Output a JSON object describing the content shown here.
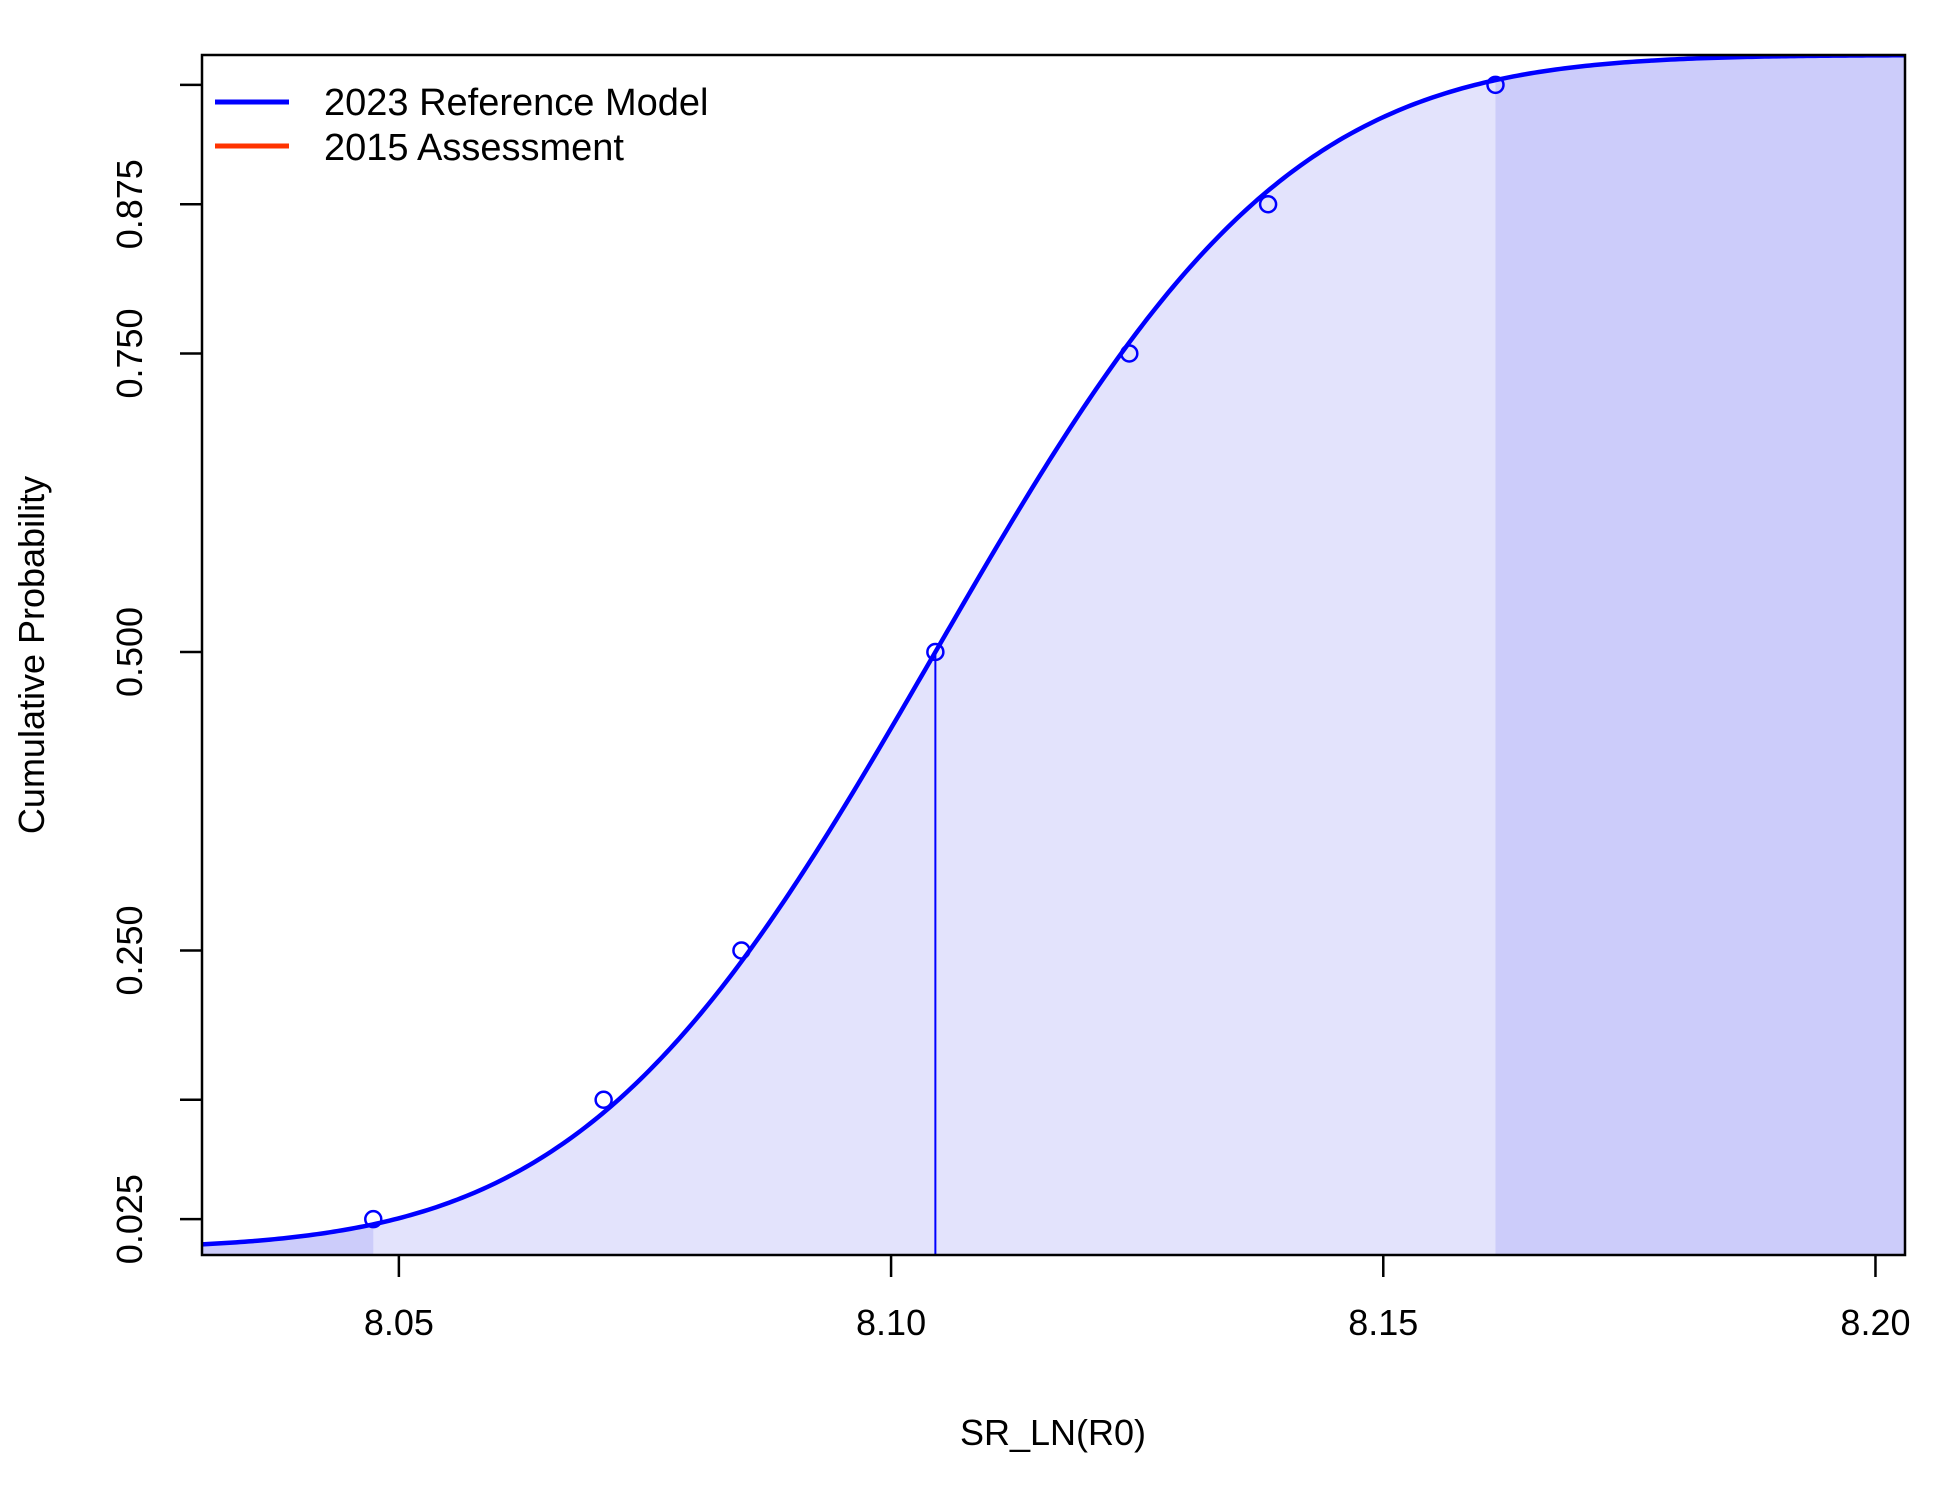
{
  "chart_data": {
    "type": "line",
    "xlabel": "SR_LN(R0)",
    "ylabel": "Cumulative Probability",
    "xlim": [
      8.03,
      8.203
    ],
    "ylim": [
      0.0,
      1.0
    ],
    "x_ticks": [
      "8.05",
      "8.10",
      "8.15",
      "8.20"
    ],
    "x_tick_values": [
      8.05,
      8.1,
      8.15,
      8.2
    ],
    "y_ticks": [
      "0.025",
      "0.250",
      "0.500",
      "0.750",
      "0.875"
    ],
    "y_tick_values": [
      0.025,
      0.25,
      0.5,
      0.75,
      0.875
    ],
    "y_minor_tick_values": [
      0.125,
      0.975
    ],
    "grid": false,
    "legend_position": "top-left",
    "series": [
      {
        "name": "2023 Reference Model",
        "color": "#0000ff",
        "mean": 8.1045,
        "sd": 0.02799,
        "quantile_points": [
          {
            "x": 8.0474,
            "y": 0.025
          },
          {
            "x": 8.0708,
            "y": 0.125
          },
          {
            "x": 8.0848,
            "y": 0.25
          },
          {
            "x": 8.1045,
            "y": 0.5
          },
          {
            "x": 8.1242,
            "y": 0.75
          },
          {
            "x": 8.1383,
            "y": 0.875
          },
          {
            "x": 8.1614,
            "y": 0.975
          }
        ],
        "median_x": 8.1045
      },
      {
        "name": "2015 Assessment",
        "color": "#ff3300"
      }
    ],
    "shading": {
      "inner_interval": [
        8.0474,
        8.1614
      ],
      "inner_color": "#e3e3fc",
      "outer_color": "#ccccfa"
    }
  }
}
